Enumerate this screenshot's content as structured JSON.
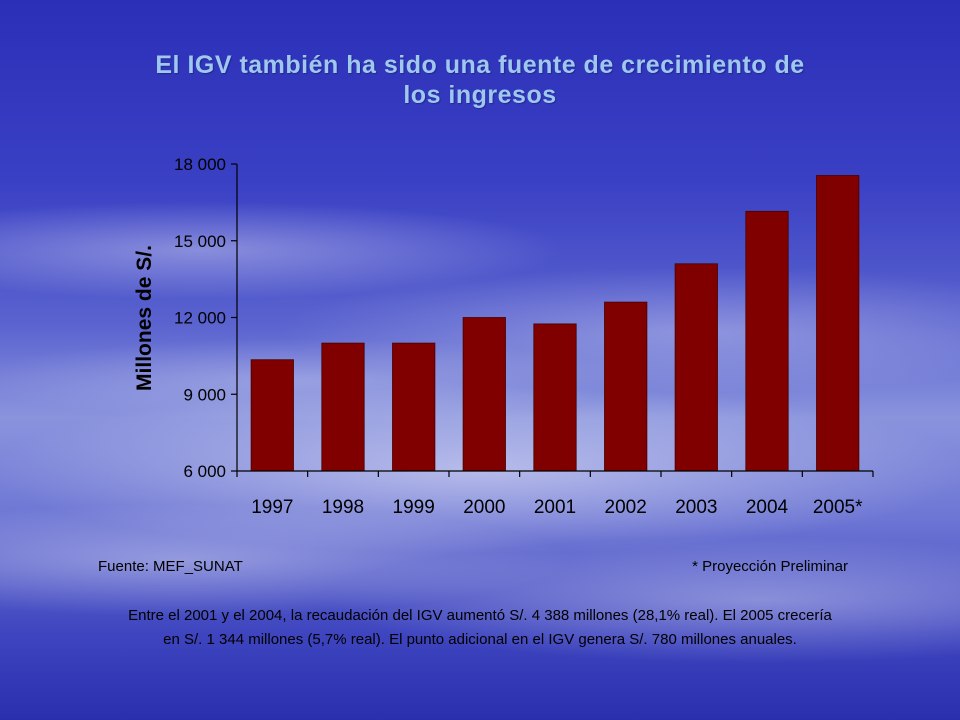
{
  "slide": {
    "title_line1": "El IGV también ha sido una fuente de crecimiento de",
    "title_line2": "los ingresos",
    "source_note": "Fuente: MEF_SUNAT",
    "projection_note": "* Proyección Preliminar",
    "summary_line1": "Entre el 2001 y el 2004, la recaudación del IGV aumentó S/. 4 388 millones (28,1% real). El 2005 crecería",
    "summary_line2": "en S/. 1 344 millones (5,7% real). El punto adicional en el IGV genera S/. 780 millones anuales."
  },
  "chart_data": {
    "type": "bar",
    "title": "",
    "xlabel": "",
    "ylabel": "Millones de S/.",
    "categories": [
      "1997",
      "1998",
      "1999",
      "2000",
      "2001",
      "2002",
      "2003",
      "2004",
      "2005*"
    ],
    "values": [
      10350,
      11000,
      11000,
      12000,
      11750,
      12600,
      14100,
      16150,
      17550
    ],
    "ylim": [
      6000,
      18000
    ],
    "yticks": [
      6000,
      9000,
      12000,
      15000,
      18000
    ],
    "ytick_labels": [
      "6 000",
      "9 000",
      "12 000",
      "15 000",
      "18 000"
    ],
    "grid": false,
    "bar_color": "#800000"
  }
}
